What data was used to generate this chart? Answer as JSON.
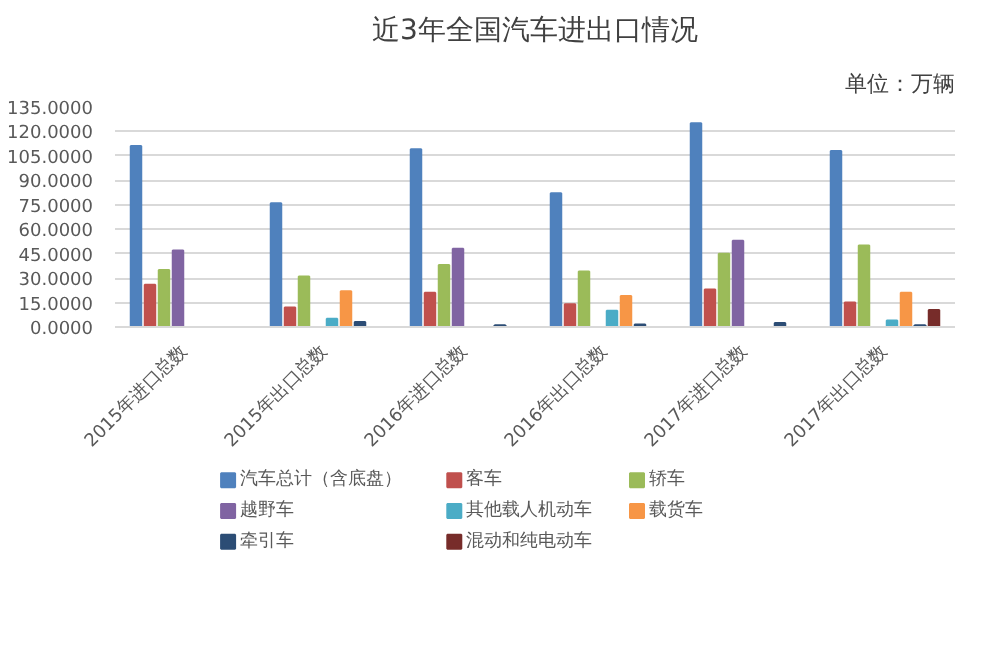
{
  "chart_data": {
    "type": "bar",
    "title": "近3年全国汽车进出口情况",
    "annotations": [
      "单位：万辆"
    ],
    "categories": [
      "2015年进口总数",
      "2015年出口总数",
      "2016年进口总数",
      "2016年出口总数",
      "2017年进口总数",
      "2017年出口总数"
    ],
    "series": [
      {
        "name": "汽车总计（含底盘）",
        "color": "#4f81bd",
        "values": [
          111,
          76,
          109,
          82,
          125,
          108
        ]
      },
      {
        "name": "客车",
        "color": "#c0504d",
        "values": [
          26,
          12,
          21,
          14,
          23,
          15
        ]
      },
      {
        "name": "轿车",
        "color": "#9bbb59",
        "values": [
          35,
          31,
          38,
          34,
          45,
          50
        ]
      },
      {
        "name": "越野车",
        "color": "#8064a2",
        "values": [
          47,
          null,
          48,
          null,
          53,
          null
        ]
      },
      {
        "name": "其他载人机动车",
        "color": "#4bacc6",
        "values": [
          null,
          5,
          null,
          10,
          null,
          4
        ]
      },
      {
        "name": "载货车",
        "color": "#f79646",
        "values": [
          null,
          22,
          null,
          19,
          null,
          21
        ]
      },
      {
        "name": "牵引车",
        "color": "#2c4d75",
        "values": [
          null,
          3,
          1,
          1.5,
          2.5,
          1
        ]
      },
      {
        "name": "混动和纯电动车",
        "color": "#772c2a",
        "values": [
          null,
          null,
          null,
          null,
          null,
          10.5
        ]
      }
    ],
    "ylim": [
      0,
      135
    ],
    "yticks": [
      {
        "value": 0,
        "label": "0.0000"
      },
      {
        "value": 15,
        "label": "15.0000"
      },
      {
        "value": 30,
        "label": "30.0000"
      },
      {
        "value": 45,
        "label": "45.0000"
      },
      {
        "value": 60,
        "label": "60.0000"
      },
      {
        "value": 75,
        "label": "75.0000"
      },
      {
        "value": 90,
        "label": "90.0000"
      },
      {
        "value": 105,
        "label": "105.0000"
      },
      {
        "value": 120,
        "label": "120.0000"
      },
      {
        "value": 135,
        "label": "135.0000"
      }
    ],
    "grid": "y",
    "legend": "bottom"
  }
}
